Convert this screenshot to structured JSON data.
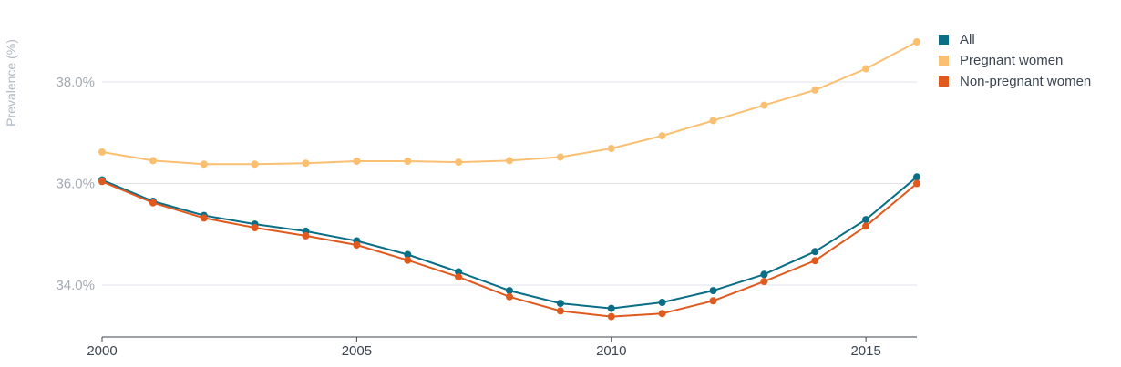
{
  "chart_data": {
    "type": "line",
    "title": "",
    "xlabel": "",
    "ylabel": "Prevalence (%)",
    "x": [
      2000,
      2001,
      2002,
      2003,
      2004,
      2005,
      2006,
      2007,
      2008,
      2009,
      2010,
      2011,
      2012,
      2013,
      2014,
      2015,
      2016
    ],
    "x_ticks": [
      "2000",
      "2005",
      "2010",
      "2015"
    ],
    "y_ticks": [
      "34.0%",
      "36.0%",
      "38.0%"
    ],
    "y_tick_values": [
      34.0,
      36.0,
      38.0
    ],
    "xlim": [
      2000,
      2016
    ],
    "ylim": [
      33.0,
      39.5
    ],
    "grid": "horizontal",
    "legend_position": "top-right",
    "series": [
      {
        "name": "All",
        "color": "#0a6e86",
        "values": [
          36.07,
          35.65,
          35.37,
          35.2,
          35.06,
          34.87,
          34.6,
          34.26,
          33.89,
          33.64,
          33.54,
          33.66,
          33.89,
          34.21,
          34.66,
          35.29,
          36.13
        ]
      },
      {
        "name": "Pregnant women",
        "color": "#fbbf72",
        "values": [
          36.62,
          36.45,
          36.38,
          36.38,
          36.4,
          36.44,
          36.44,
          36.42,
          36.45,
          36.52,
          36.69,
          36.94,
          37.24,
          37.54,
          37.84,
          38.26,
          38.79
        ]
      },
      {
        "name": "Non-pregnant women",
        "color": "#e05a1f",
        "values": [
          36.04,
          35.62,
          35.32,
          35.13,
          34.97,
          34.79,
          34.49,
          34.16,
          33.77,
          33.49,
          33.38,
          33.44,
          33.69,
          34.07,
          34.48,
          35.16,
          36.0
        ]
      }
    ]
  }
}
